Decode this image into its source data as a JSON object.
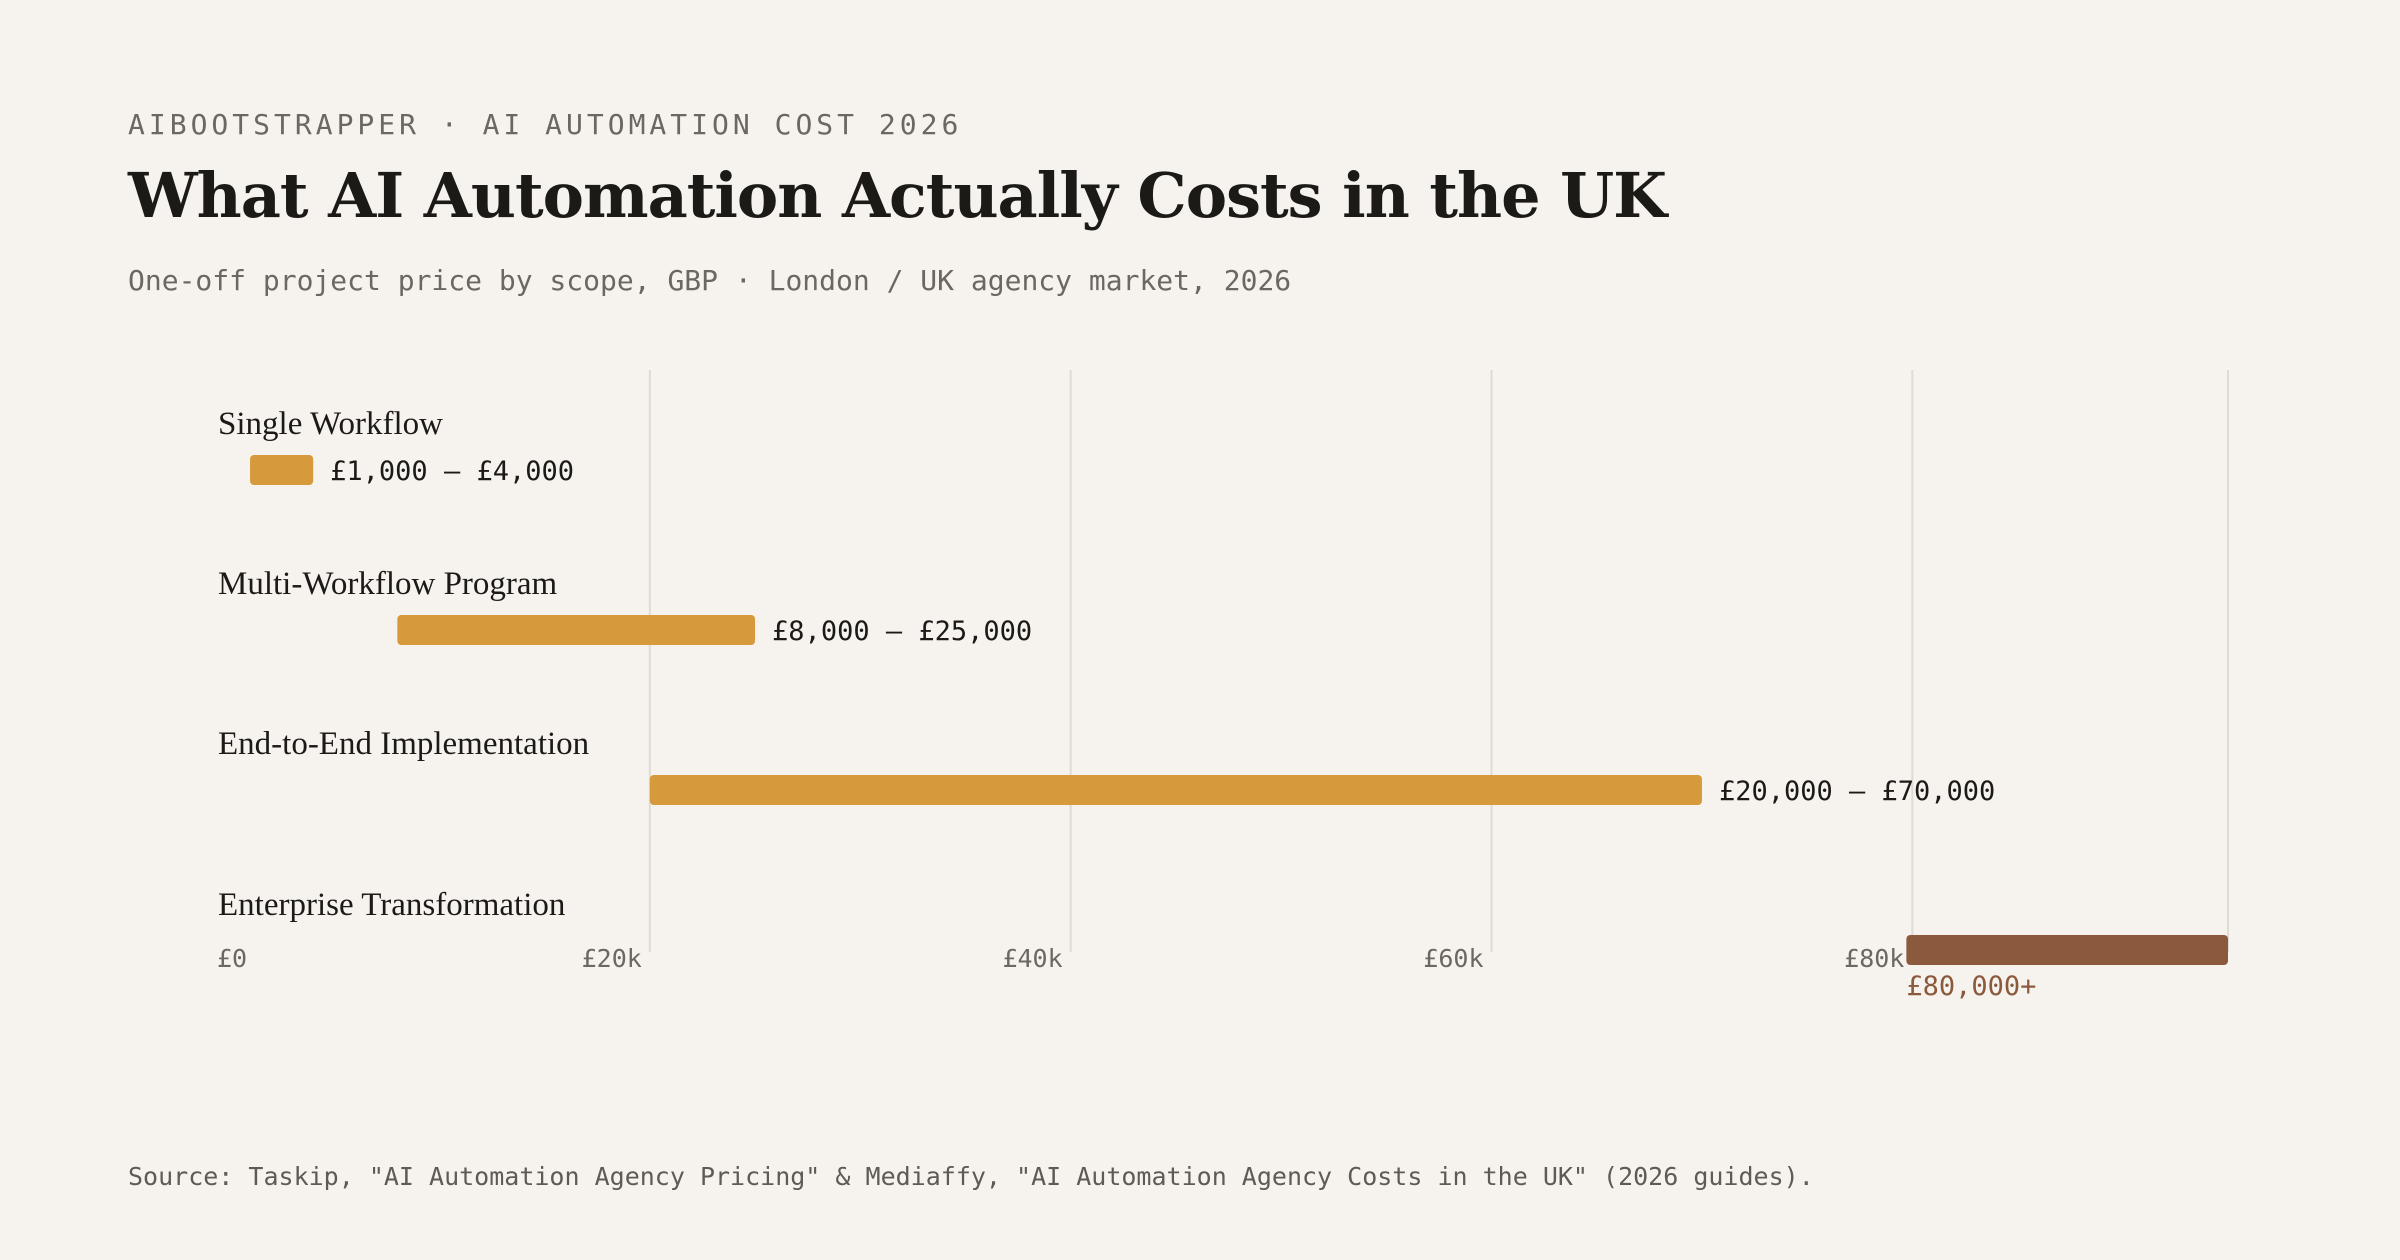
{
  "header": {
    "kicker": "AIBOOTSTRAPPER · AI AUTOMATION COST 2026",
    "title": "What AI Automation Actually Costs in the UK",
    "subtitle": "One-off project price by scope, GBP · London / UK agency market, 2026"
  },
  "source": "Source: Taskip, \"AI Automation Agency Pricing\" & Mediaffy, \"AI Automation Agency Costs in the UK\" (2026 guides).",
  "colors": {
    "range_bar": "#d69a3d",
    "enterprise_bar": "#8b5a3c",
    "gridline": "#dedad4",
    "background": "#f6f3ee"
  },
  "chart_data": {
    "type": "bar",
    "orientation": "horizontal-range",
    "title": "What AI Automation Actually Costs in the UK",
    "subtitle": "One-off project price by scope, GBP · London / UK agency market, 2026",
    "xlabel": "",
    "ylabel": "",
    "xlim": [
      0,
      95000
    ],
    "grid": true,
    "legend": "none",
    "ticks": [
      {
        "value": 0,
        "label": "£0"
      },
      {
        "value": 20000,
        "label": "£20k"
      },
      {
        "value": 40000,
        "label": "£40k"
      },
      {
        "value": 60000,
        "label": "£60k"
      },
      {
        "value": 80000,
        "label": "£80k"
      }
    ],
    "categories": [
      "Single Workflow",
      "Multi-Workflow Program",
      "End-to-End Implementation",
      "Enterprise Transformation"
    ],
    "ranges": [
      {
        "category": "Single Workflow",
        "low": 1000,
        "high": 4000,
        "label": "£1,000 – £4,000",
        "open_ended": false
      },
      {
        "category": "Multi-Workflow Program",
        "low": 8000,
        "high": 25000,
        "label": "£8,000 – £25,000",
        "open_ended": false
      },
      {
        "category": "End-to-End Implementation",
        "low": 20000,
        "high": 70000,
        "label": "£20,000 – £70,000",
        "open_ended": false
      },
      {
        "category": "Enterprise Transformation",
        "low": 80000,
        "high": null,
        "label": "£80,000+",
        "open_ended": true
      }
    ]
  }
}
